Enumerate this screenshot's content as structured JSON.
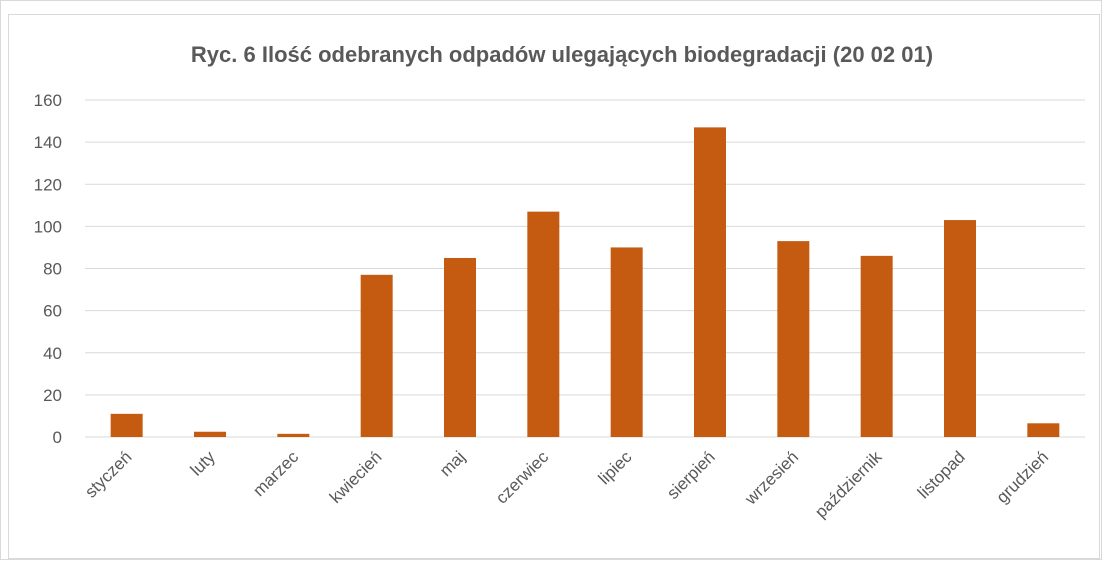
{
  "chart_data": {
    "type": "bar",
    "title": "Ryc. 6 Ilość odebranych odpadów ulegających biodegradacji (20 02 01)",
    "categories": [
      "styczeń",
      "luty",
      "marzec",
      "kwiecień",
      "maj",
      "czerwiec",
      "lipiec",
      "sierpień",
      "wrzesień",
      "październik",
      "listopad",
      "grudzień"
    ],
    "values": [
      11,
      2.5,
      1.5,
      77,
      85,
      107,
      90,
      147,
      93,
      86,
      103,
      6.5
    ],
    "color": "#c55a11",
    "ylim": [
      0,
      160
    ],
    "yticks": [
      0,
      20,
      40,
      60,
      80,
      100,
      120,
      140,
      160
    ],
    "grid": true
  }
}
